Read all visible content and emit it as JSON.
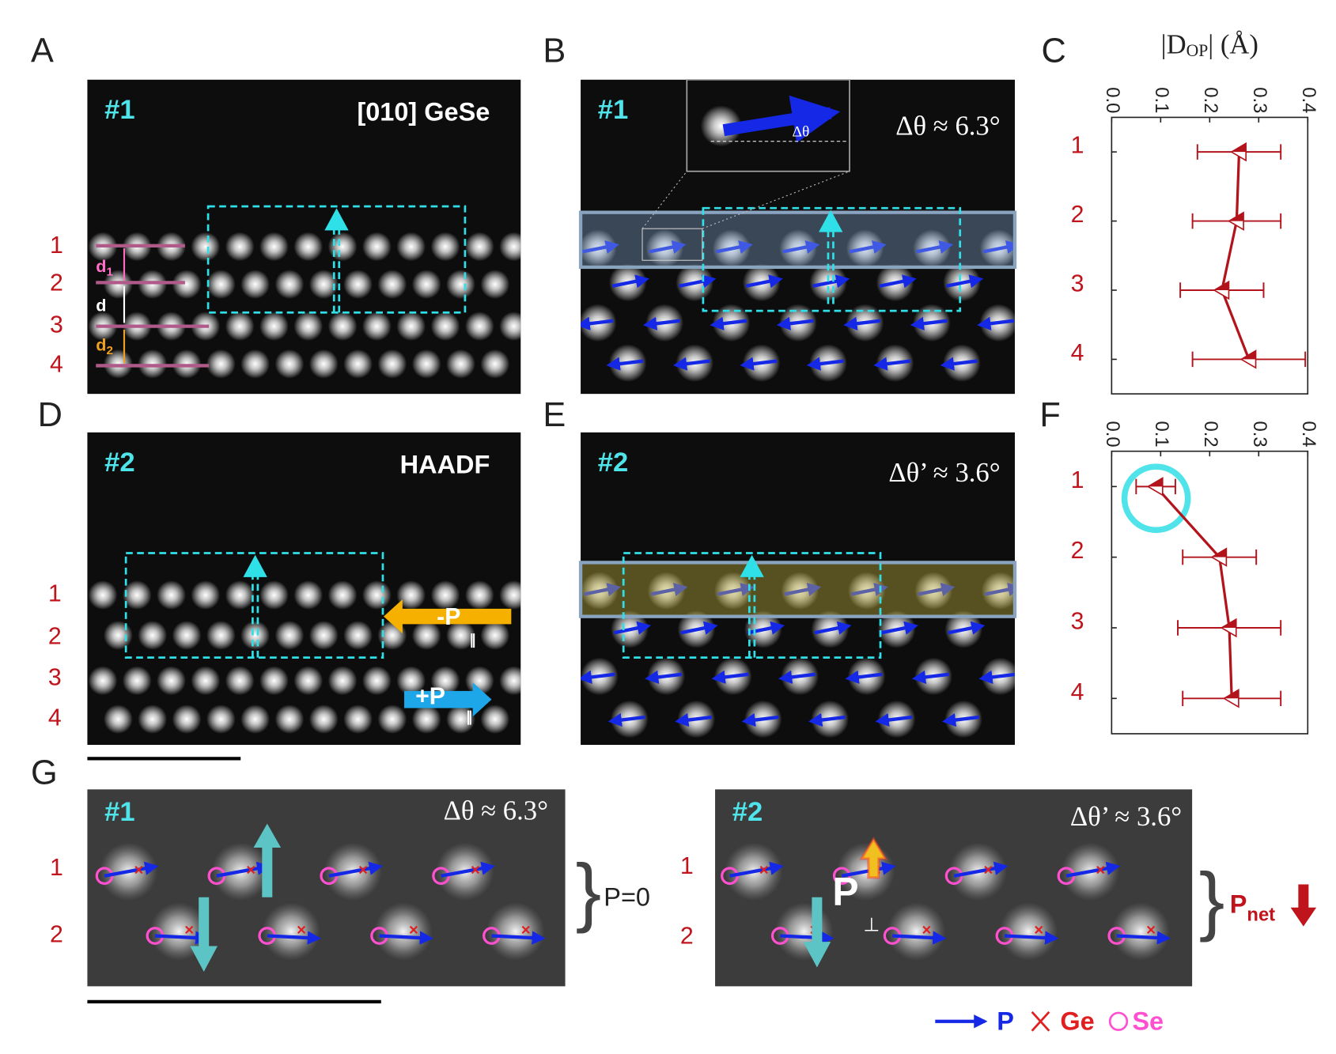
{
  "panels": {
    "A": {
      "label": "A",
      "tag": "#1",
      "title": "[010] GeSe",
      "rows": [
        "1",
        "2",
        "3",
        "4"
      ],
      "d1": "d",
      "d1_sub": "1",
      "d": "d",
      "d2": "d",
      "d2_sub": "2"
    },
    "B": {
      "label": "B",
      "tag": "#1",
      "angle": "Δθ ≈ 6.3°",
      "inset_angle": "Δθ"
    },
    "C": {
      "label": "C"
    },
    "D": {
      "label": "D",
      "tag": "#2",
      "title": "HAADF",
      "rows": [
        "1",
        "2",
        "3",
        "4"
      ],
      "neg_p": "-P",
      "neg_p_sub": "∥",
      "pos_p": "+P",
      "pos_p_sub": "∥"
    },
    "E": {
      "label": "E",
      "tag": "#2",
      "angle": "Δθ’ ≈ 3.6°"
    },
    "F": {
      "label": "F"
    },
    "G": {
      "label": "G",
      "left": {
        "tag": "#1",
        "angle": "Δθ ≈ 6.3°",
        "rows": [
          "1",
          "2"
        ],
        "note": "P=0"
      },
      "right": {
        "tag": "#2",
        "angle": "Δθ’ ≈ 3.6°",
        "rows": [
          "1",
          "2"
        ],
        "p": "P",
        "p_sub": "⊥",
        "net": "P",
        "net_sub": "net"
      }
    },
    "legend": {
      "p": "P",
      "ge": "Ge",
      "se": "Se"
    }
  },
  "chart_data": [
    {
      "type": "line",
      "orientation": "horizontal",
      "xlabel": "|D",
      "xlabel_sub": "OP",
      "xlabel_end": "| (Å)",
      "categories": [
        "1",
        "2",
        "3",
        "4"
      ],
      "values": [
        0.26,
        0.255,
        0.225,
        0.28
      ],
      "errors": [
        0.085,
        0.09,
        0.085,
        0.115
      ],
      "xlim": [
        0,
        0.4
      ],
      "xticks": [
        {
          "value": 0,
          "label": "0.0"
        },
        0.1,
        0.2,
        0.3,
        0.4
      ],
      "color": "#b3141c"
    },
    {
      "type": "line",
      "orientation": "horizontal",
      "categories": [
        "1",
        "2",
        "3",
        "4"
      ],
      "values": [
        0.09,
        0.22,
        0.24,
        0.245
      ],
      "errors": [
        0.04,
        0.075,
        0.105,
        0.1
      ],
      "xlim": [
        0,
        0.4
      ],
      "xticks": [
        {
          "value": 0,
          "label": "0.0"
        },
        0.1,
        0.2,
        0.3,
        0.4
      ],
      "color": "#b3141c"
    }
  ]
}
